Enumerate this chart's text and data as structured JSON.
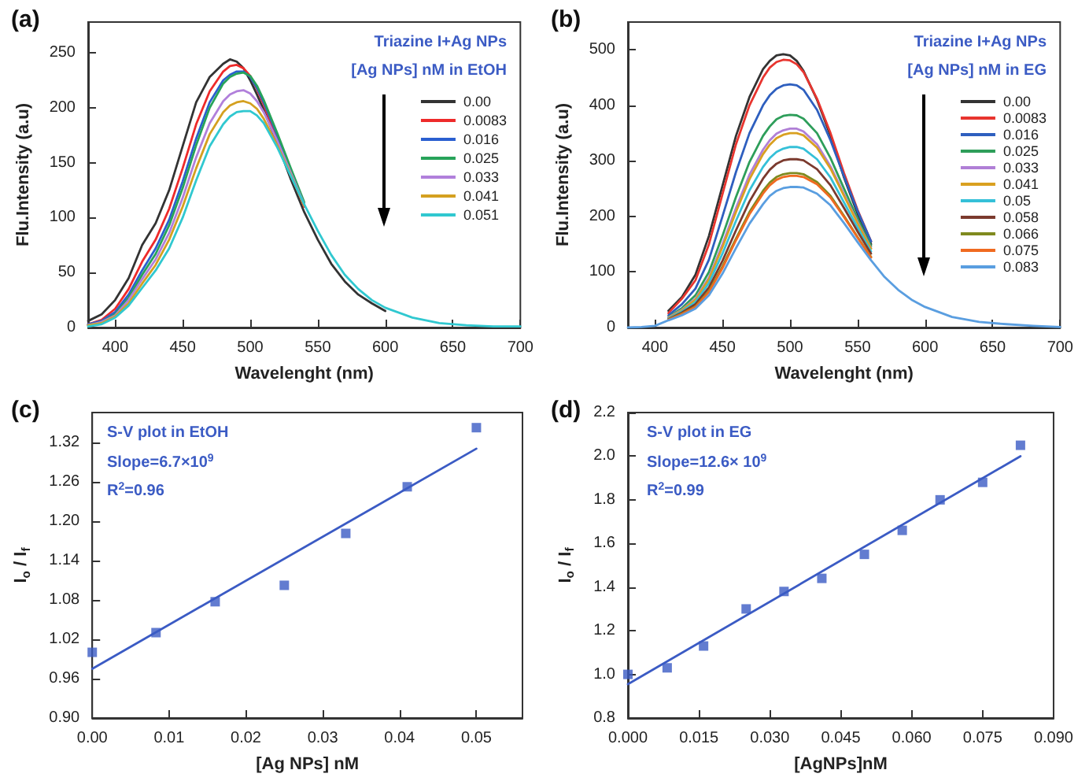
{
  "chart_data": [
    {
      "type": "line",
      "title": "(a)",
      "xlabel": "Wavelenght (nm)",
      "ylabel": "Flu.Intensity (a.u)",
      "annotations": [
        "Triazine I+Ag NPs",
        "[Ag NPs] nM in EtOH"
      ],
      "xlim": [
        380,
        700
      ],
      "xticks": [
        400,
        450,
        500,
        550,
        600,
        650,
        700
      ],
      "ylim": [
        0,
        278
      ],
      "yticks": [
        0,
        50,
        100,
        150,
        200,
        250
      ],
      "legend": "right",
      "marker": "none",
      "line_style": "solid",
      "grid": false,
      "x": [
        380,
        390,
        400,
        410,
        420,
        430,
        440,
        450,
        460,
        470,
        480,
        485,
        490,
        495,
        500,
        505,
        510,
        520,
        530,
        540,
        550,
        560,
        570,
        580,
        590,
        600,
        620,
        640,
        660,
        680,
        700
      ],
      "series": [
        {
          "name": "0.00",
          "color": "#333333",
          "values": [
            6,
            12,
            25,
            45,
            75,
            95,
            125,
            165,
            205,
            228,
            240,
            244,
            242,
            236,
            225,
            212,
            198,
            168,
            135,
            105,
            80,
            58,
            42,
            30,
            22,
            15,
            null,
            null,
            null,
            null,
            null
          ]
        },
        {
          "name": "0.0083",
          "color": "#ee2a2a",
          "values": [
            3,
            7,
            17,
            35,
            60,
            80,
            108,
            145,
            185,
            215,
            233,
            238,
            239,
            236,
            229,
            217,
            203,
            172,
            140,
            110,
            null,
            null,
            null,
            null,
            null,
            null,
            null,
            null,
            null,
            null,
            null
          ]
        },
        {
          "name": "0.016",
          "color": "#2a5fd0",
          "values": [
            3,
            6,
            14,
            30,
            52,
            72,
            98,
            133,
            172,
            205,
            225,
            230,
            233,
            233,
            228,
            218,
            205,
            175,
            143,
            112,
            null,
            null,
            null,
            null,
            null,
            null,
            null,
            null,
            null,
            null,
            null
          ]
        },
        {
          "name": "0.025",
          "color": "#27a35a",
          "values": [
            2,
            5,
            12,
            27,
            48,
            67,
            93,
            127,
            166,
            200,
            222,
            228,
            231,
            232,
            229,
            220,
            207,
            177,
            145,
            114,
            null,
            null,
            null,
            null,
            null,
            null,
            null,
            null,
            null,
            null,
            null
          ]
        },
        {
          "name": "0.033",
          "color": "#b180db",
          "values": [
            2,
            5,
            11,
            25,
            44,
            62,
            86,
            118,
            155,
            186,
            206,
            212,
            215,
            216,
            213,
            206,
            196,
            170,
            141,
            112,
            null,
            null,
            null,
            null,
            null,
            null,
            null,
            null,
            null,
            null,
            null
          ]
        },
        {
          "name": "0.041",
          "color": "#d4a020",
          "values": [
            2,
            4,
            10,
            22,
            40,
            57,
            80,
            110,
            145,
            176,
            196,
            202,
            205,
            206,
            204,
            199,
            190,
            166,
            139,
            111,
            null,
            null,
            null,
            null,
            null,
            null,
            null,
            null,
            null,
            null,
            null
          ]
        },
        {
          "name": "0.051",
          "color": "#30c8d0",
          "values": [
            1,
            3,
            9,
            20,
            36,
            52,
            72,
            100,
            134,
            165,
            185,
            192,
            196,
            197,
            197,
            193,
            186,
            164,
            138,
            112,
            88,
            66,
            48,
            35,
            25,
            18,
            9,
            4,
            2,
            1,
            1
          ]
        }
      ]
    },
    {
      "type": "line",
      "title": "(b)",
      "xlabel": "Wavelenght (nm)",
      "ylabel": "Flu.Intensity (a.u)",
      "annotations": [
        "Triazine I+Ag NPs",
        "[Ag NPs] nM in EG"
      ],
      "xlim": [
        380,
        700
      ],
      "xticks": [
        400,
        450,
        500,
        550,
        600,
        650,
        700
      ],
      "ylim": [
        0,
        550
      ],
      "yticks": [
        0,
        100,
        200,
        300,
        400,
        500
      ],
      "legend": "right",
      "marker": "none",
      "line_style": "solid",
      "grid": false,
      "x": [
        380,
        390,
        400,
        410,
        420,
        430,
        440,
        450,
        460,
        470,
        480,
        485,
        490,
        495,
        500,
        505,
        510,
        520,
        530,
        540,
        550,
        560,
        570,
        580,
        590,
        600,
        620,
        640,
        660,
        680,
        700
      ],
      "series": [
        {
          "name": "0.00",
          "color": "#333333",
          "values": [
            null,
            null,
            null,
            30,
            55,
            95,
            165,
            255,
            345,
            415,
            465,
            480,
            490,
            492,
            490,
            480,
            462,
            410,
            345,
            270,
            205,
            150,
            null,
            null,
            null,
            null,
            null,
            null,
            null,
            null,
            null
          ]
        },
        {
          "name": "0.0083",
          "color": "#e8352f",
          "values": [
            null,
            null,
            null,
            26,
            52,
            85,
            150,
            240,
            330,
            400,
            450,
            468,
            478,
            482,
            481,
            474,
            460,
            412,
            350,
            278,
            212,
            155,
            null,
            null,
            null,
            null,
            null,
            null,
            null,
            null,
            null
          ]
        },
        {
          "name": "0.016",
          "color": "#2e5fbf",
          "values": [
            null,
            null,
            null,
            22,
            42,
            70,
            122,
            200,
            280,
            350,
            400,
            418,
            430,
            436,
            438,
            436,
            428,
            392,
            337,
            272,
            210,
            155,
            null,
            null,
            null,
            null,
            null,
            null,
            null,
            null,
            null
          ]
        },
        {
          "name": "0.025",
          "color": "#2e9e5a",
          "values": [
            null,
            null,
            null,
            19,
            35,
            58,
            100,
            165,
            235,
            298,
            345,
            362,
            375,
            381,
            383,
            382,
            376,
            350,
            305,
            250,
            196,
            147,
            null,
            null,
            null,
            null,
            null,
            null,
            null,
            null,
            null
          ]
        },
        {
          "name": "0.033",
          "color": "#b07fd6",
          "values": [
            null,
            null,
            null,
            18,
            32,
            52,
            90,
            150,
            215,
            275,
            320,
            337,
            349,
            355,
            358,
            358,
            353,
            330,
            290,
            240,
            190,
            143,
            null,
            null,
            null,
            null,
            null,
            null,
            null,
            null,
            null
          ]
        },
        {
          "name": "0.041",
          "color": "#d9a020",
          "values": [
            null,
            null,
            null,
            17,
            31,
            50,
            87,
            145,
            208,
            267,
            312,
            329,
            341,
            347,
            350,
            350,
            346,
            324,
            286,
            237,
            188,
            142,
            null,
            null,
            null,
            null,
            null,
            null,
            null,
            null,
            null
          ]
        },
        {
          "name": "0.05",
          "color": "#35c0d8",
          "values": [
            null,
            null,
            null,
            16,
            29,
            46,
            80,
            133,
            192,
            247,
            289,
            305,
            316,
            322,
            325,
            325,
            322,
            303,
            270,
            225,
            180,
            137,
            null,
            null,
            null,
            null,
            null,
            null,
            null,
            null,
            null
          ]
        },
        {
          "name": "0.058",
          "color": "#7b3a2e",
          "values": [
            null,
            null,
            null,
            15,
            27,
            42,
            72,
            120,
            175,
            227,
            268,
            284,
            295,
            301,
            303,
            303,
            301,
            285,
            256,
            215,
            173,
            133,
            null,
            null,
            null,
            null,
            null,
            null,
            null,
            null,
            null
          ]
        },
        {
          "name": "0.066",
          "color": "#7f8a1e",
          "values": [
            null,
            null,
            null,
            14,
            25,
            38,
            66,
            110,
            160,
            208,
            246,
            261,
            271,
            276,
            278,
            278,
            276,
            262,
            237,
            201,
            163,
            127,
            null,
            null,
            null,
            null,
            null,
            null,
            null,
            null,
            null
          ]
        },
        {
          "name": "0.075",
          "color": "#f06a20",
          "values": [
            null,
            null,
            null,
            14,
            24,
            37,
            64,
            107,
            157,
            204,
            241,
            256,
            266,
            271,
            273,
            273,
            271,
            258,
            234,
            199,
            162,
            126,
            null,
            null,
            null,
            null,
            null,
            null,
            null,
            null,
            null
          ]
        },
        {
          "name": "0.083",
          "color": "#5a9ee0",
          "values": [
            0,
            1,
            3,
            13,
            22,
            34,
            58,
            97,
            143,
            187,
            222,
            237,
            246,
            251,
            253,
            253,
            252,
            241,
            220,
            188,
            154,
            121,
            91,
            68,
            50,
            37,
            19,
            10,
            6,
            3,
            1
          ]
        }
      ]
    },
    {
      "type": "scatter",
      "title": "(c)",
      "xlabel": "[Ag NPs] nM",
      "ylabel": "I$_{o}$ / I$_{f}$",
      "annotations": [
        "S-V plot in EtOH",
        "Slope=6.7×10$^{9}$",
        "R$^{2}$=0.96"
      ],
      "xlim": [
        0,
        0.056
      ],
      "xticks": [
        {
          "value": 0,
          "label": "0.00"
        },
        {
          "value": 0.01,
          "label": "0.01"
        },
        {
          "value": 0.02,
          "label": "0.02"
        },
        {
          "value": 0.03,
          "label": "0.03"
        },
        {
          "value": 0.04,
          "label": "0.04"
        },
        {
          "value": 0.05,
          "label": "0.05"
        }
      ],
      "ylim": [
        0.9,
        1.365
      ],
      "yticks": [
        {
          "value": 0.9,
          "label": "0.90"
        },
        {
          "value": 0.96,
          "label": "0.96"
        },
        {
          "value": 1.02,
          "label": "1.02"
        },
        {
          "value": 1.08,
          "label": "1.08"
        },
        {
          "value": 1.14,
          "label": "1.14"
        },
        {
          "value": 1.2,
          "label": "1.20"
        },
        {
          "value": 1.26,
          "label": "1.26"
        },
        {
          "value": 1.32,
          "label": "1.32"
        }
      ],
      "marker": "square",
      "grid": false,
      "x": [
        0,
        0.0083,
        0.016,
        0.025,
        0.033,
        0.041,
        0.05
      ],
      "series": [
        {
          "type": "scatter",
          "color": "#3b5bc4",
          "values": [
            1.0,
            1.03,
            1.077,
            1.102,
            1.181,
            1.252,
            1.342
          ]
        },
        {
          "type": "line",
          "color": "#3b5bc4",
          "marker": "none",
          "x": [
            0,
            0.05
          ],
          "values": [
            0.975,
            1.31
          ]
        }
      ]
    },
    {
      "type": "scatter",
      "title": "(d)",
      "xlabel": "[AgNPs]nM",
      "ylabel": "I$_{o}$ / I$_{f}$",
      "annotations": [
        "S-V plot in EG",
        "Slope=12.6× 10$^{9}$",
        "R$^{2}$=0.99"
      ],
      "xlim": [
        0,
        0.09
      ],
      "xticks": [
        {
          "value": 0,
          "label": "0.000"
        },
        {
          "value": 0.015,
          "label": "0.015"
        },
        {
          "value": 0.03,
          "label": "0.030"
        },
        {
          "value": 0.045,
          "label": "0.045"
        },
        {
          "value": 0.06,
          "label": "0.060"
        },
        {
          "value": 0.075,
          "label": "0.075"
        },
        {
          "value": 0.09,
          "label": "0.090"
        }
      ],
      "ylim": [
        0.8,
        2.2
      ],
      "yticks": [
        {
          "value": 0.8,
          "label": "0.8"
        },
        {
          "value": 1.0,
          "label": "1.0"
        },
        {
          "value": 1.2,
          "label": "1.2"
        },
        {
          "value": 1.4,
          "label": "1.4"
        },
        {
          "value": 1.6,
          "label": "1.6"
        },
        {
          "value": 1.8,
          "label": "1.8"
        },
        {
          "value": 2.0,
          "label": "2.0"
        },
        {
          "value": 2.2,
          "label": "2.2"
        }
      ],
      "marker": "square",
      "grid": false,
      "x": [
        0,
        0.0083,
        0.016,
        0.025,
        0.033,
        0.041,
        0.05,
        0.058,
        0.066,
        0.075,
        0.083
      ],
      "series": [
        {
          "type": "scatter",
          "color": "#3b5bc4",
          "values": [
            1.0,
            1.03,
            1.13,
            1.3,
            1.38,
            1.44,
            1.55,
            1.66,
            1.8,
            1.88,
            2.05
          ]
        },
        {
          "type": "line",
          "color": "#3b5bc4",
          "marker": "none",
          "x": [
            0,
            0.083
          ],
          "values": [
            0.955,
            2.0
          ]
        }
      ]
    }
  ]
}
